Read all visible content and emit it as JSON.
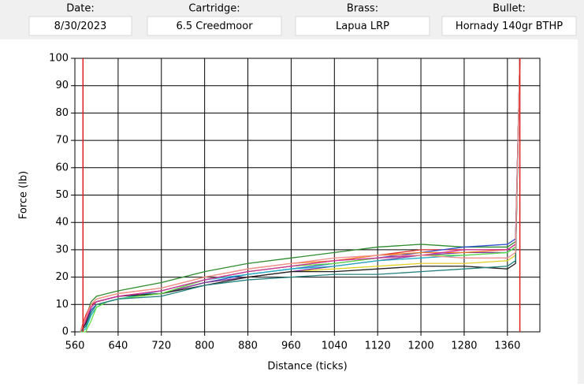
{
  "header": {
    "fields": [
      {
        "label": "Date:",
        "value": "8/30/2023"
      },
      {
        "label": "Cartridge:",
        "value": "6.5 Creedmoor"
      },
      {
        "label": "Brass:",
        "value": "Lapua LRP"
      },
      {
        "label": "Bullet:",
        "value": "Hornady 140gr BTHP"
      }
    ]
  },
  "chart_data": {
    "type": "line",
    "x_label": "Distance (ticks)",
    "y_label": "Force (lb)",
    "x": [
      570,
      580,
      590,
      600,
      620,
      640,
      720,
      800,
      880,
      960,
      1040,
      1120,
      1200,
      1280,
      1360,
      1375,
      1383
    ],
    "series": [
      {
        "color": "#2e8b2e",
        "values": [
          0,
          5,
          11,
          13,
          14,
          15,
          18,
          22,
          25,
          27,
          29,
          31,
          32,
          31,
          31,
          33,
          100
        ]
      },
      {
        "color": "#e03030",
        "values": [
          0,
          6,
          10,
          11,
          12,
          13,
          15,
          19,
          22,
          24,
          26,
          28,
          30,
          30,
          30,
          32,
          100
        ]
      },
      {
        "color": "#3050d0",
        "values": [
          0,
          3,
          8,
          10,
          11,
          12,
          14,
          18,
          21,
          23,
          25,
          27,
          29,
          31,
          32,
          34,
          100
        ]
      },
      {
        "color": "#e0d020",
        "values": [
          0,
          2,
          7,
          10,
          11,
          12,
          14,
          18,
          20,
          22,
          23,
          24,
          25,
          25,
          26,
          28,
          100
        ]
      },
      {
        "color": "#8030a0",
        "values": [
          0,
          4,
          9,
          11,
          12,
          13,
          14,
          18,
          20,
          22,
          24,
          26,
          28,
          29,
          29,
          31,
          100
        ]
      },
      {
        "color": "#20b0c0",
        "values": [
          0,
          1,
          6,
          9,
          11,
          12,
          15,
          19,
          21,
          23,
          24,
          26,
          27,
          28,
          29,
          31,
          100
        ]
      },
      {
        "color": "#202020",
        "values": [
          0,
          3,
          9,
          11,
          12,
          13,
          14,
          17,
          20,
          22,
          22,
          23,
          24,
          24,
          23,
          25,
          100
        ]
      },
      {
        "color": "#f08020",
        "values": [
          0,
          5,
          10,
          12,
          13,
          14,
          16,
          20,
          23,
          25,
          26,
          28,
          29,
          29,
          30,
          32,
          100
        ]
      },
      {
        "color": "#60e040",
        "values": [
          0,
          0,
          4,
          9,
          11,
          12,
          14,
          19,
          22,
          24,
          25,
          27,
          28,
          28,
          29,
          31,
          100
        ]
      },
      {
        "color": "#d030a0",
        "values": [
          0,
          4,
          9,
          11,
          12,
          13,
          15,
          19,
          22,
          24,
          26,
          27,
          28,
          30,
          30,
          32,
          100
        ]
      },
      {
        "color": "#208080",
        "values": [
          0,
          2,
          7,
          10,
          11,
          12,
          13,
          17,
          19,
          20,
          21,
          21,
          22,
          23,
          24,
          26,
          100
        ]
      },
      {
        "color": "#f09090",
        "values": [
          0,
          5,
          10,
          12,
          13,
          14,
          16,
          20,
          23,
          25,
          27,
          28,
          28,
          27,
          27,
          29,
          100
        ]
      }
    ],
    "vlines": [
      575,
      1383
    ],
    "vline_color": "#e02020",
    "xlim": [
      560,
      1420
    ],
    "ylim": [
      0,
      100
    ],
    "xticks": [
      560,
      640,
      720,
      800,
      880,
      960,
      1040,
      1120,
      1200,
      1280,
      1360
    ],
    "yticks": [
      0,
      10,
      20,
      30,
      40,
      50,
      60,
      70,
      80,
      90,
      100
    ],
    "grid": true
  }
}
